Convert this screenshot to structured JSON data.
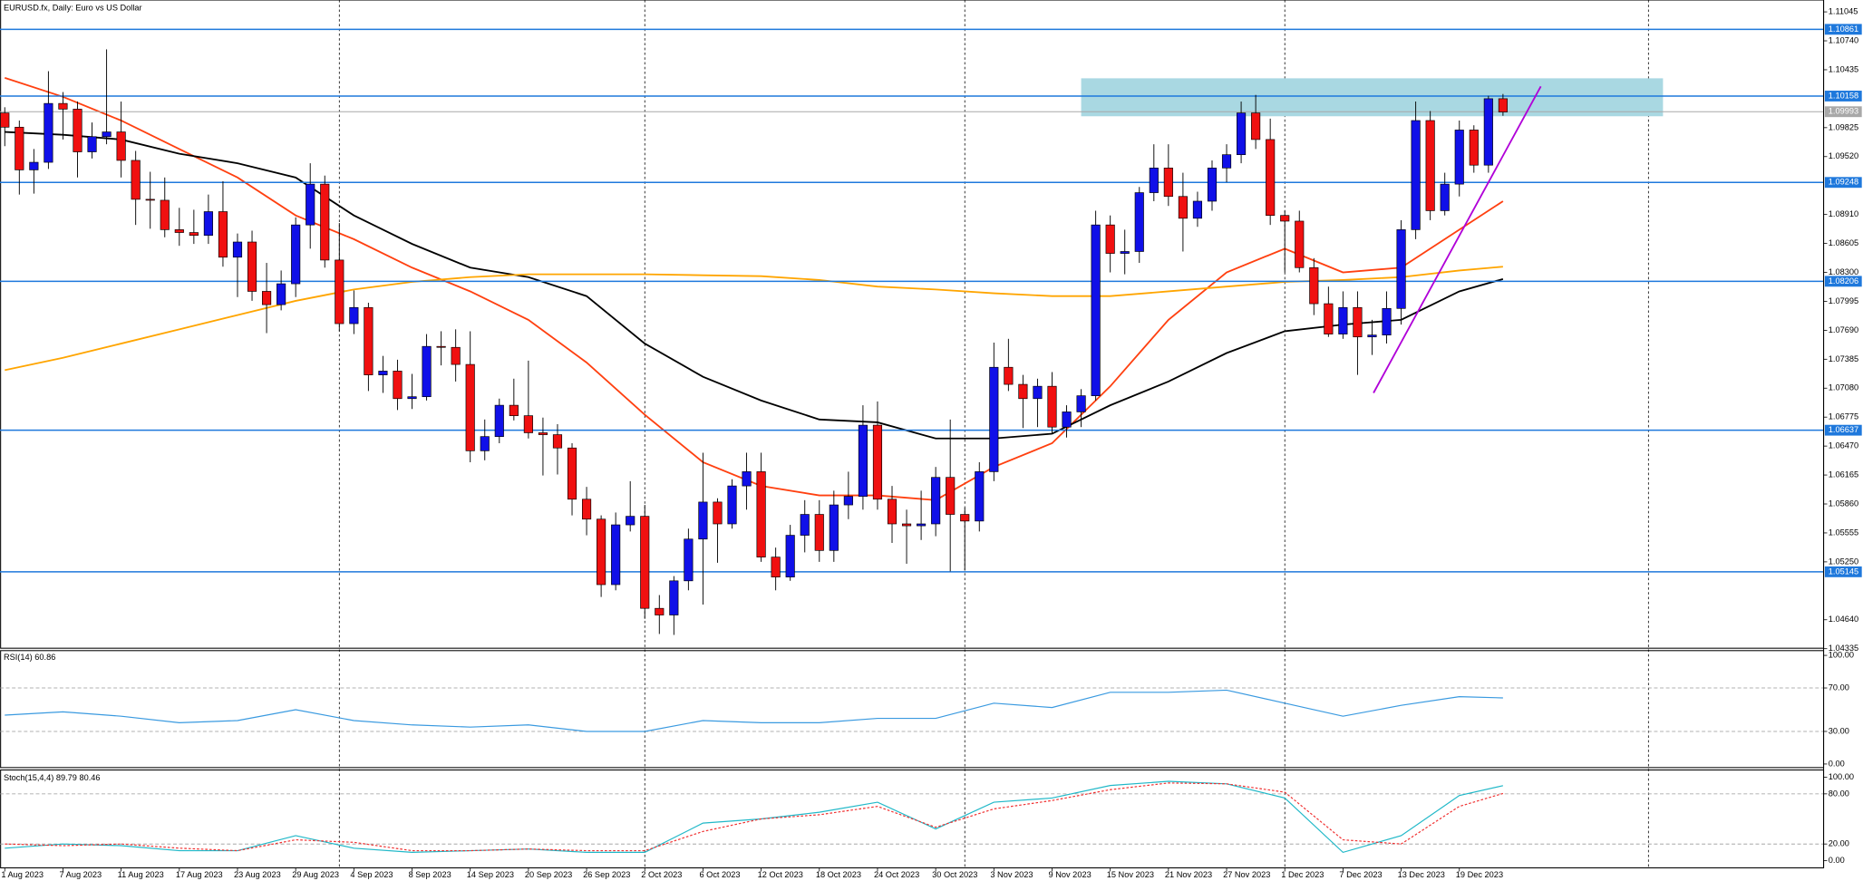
{
  "chart_data": [
    {
      "type": "candlestick",
      "title": "EURUSD.fx, Daily: Euro vs US Dollar",
      "categories": [
        "1 Aug 2023",
        null,
        null,
        null,
        "7 Aug 2023",
        null,
        null,
        null,
        "11 Aug 2023",
        null,
        null,
        null,
        "17 Aug 2023",
        null,
        null,
        null,
        "23 Aug 2023",
        null,
        null,
        null,
        "29 Aug 2023",
        null,
        null,
        null,
        "4 Sep 2023",
        null,
        null,
        null,
        "8 Sep 2023",
        null,
        null,
        null,
        "14 Sep 2023",
        null,
        null,
        null,
        "20 Sep 2023",
        null,
        null,
        null,
        "26 Sep 2023",
        null,
        null,
        null,
        "2 Oct 2023",
        null,
        null,
        null,
        "6 Oct 2023",
        null,
        null,
        null,
        "12 Oct 2023",
        null,
        null,
        null,
        "18 Oct 2023",
        null,
        null,
        null,
        "24 Oct 2023",
        null,
        null,
        null,
        "30 Oct 2023",
        null,
        null,
        null,
        "3 Nov 2023",
        null,
        null,
        null,
        "9 Nov 2023",
        null,
        null,
        null,
        "15 Nov 2023",
        null,
        null,
        null,
        "21 Nov 2023",
        null,
        null,
        null,
        "27 Nov 2023",
        null,
        null,
        null,
        "1 Dec 2023",
        null,
        null,
        null,
        "7 Dec 2023",
        null,
        null,
        null,
        "13 Dec 2023",
        null,
        null,
        null,
        "19 Dec 2023",
        null,
        null,
        null
      ],
      "open": [
        1.0998,
        1.0983,
        1.0938,
        1.0946,
        1.1008,
        1.1002,
        1.0957,
        1.0973,
        1.0978,
        1.0948,
        1.0907,
        1.0906,
        1.0875,
        1.0872,
        1.0869,
        1.0894,
        1.0846,
        1.0862,
        1.081,
        1.0796,
        1.0818,
        1.088,
        1.0923,
        1.0843,
        1.0776,
        1.0793,
        1.0722,
        1.0726,
        1.0697,
        1.0699,
        1.0752,
        1.0751,
        1.0733,
        1.0642,
        1.0657,
        1.069,
        1.0679,
        1.0661,
        1.0659,
        1.0645,
        1.0591,
        1.057,
        1.0501,
        1.0564,
        1.0573,
        1.0476,
        1.0469,
        1.0505,
        1.0549,
        1.0588,
        1.0565,
        1.0605,
        1.062,
        1.053,
        1.0509,
        1.0553,
        1.0575,
        1.0537,
        1.0585,
        1.0594,
        1.0669,
        1.0591,
        1.0565,
        1.0563,
        1.0565,
        1.0614,
        1.0575,
        1.0568,
        1.062,
        1.073,
        1.0712,
        1.0697,
        1.071,
        1.0667,
        1.0683,
        1.07,
        1.088,
        1.085,
        1.0852,
        1.0914,
        1.094,
        1.091,
        1.0887,
        1.0905,
        1.094,
        1.0954,
        1.0998,
        1.097,
        1.089,
        1.0884,
        1.0835,
        1.0797,
        1.0765,
        1.0793,
        1.0762,
        1.0764,
        1.0792,
        1.0875,
        1.099,
        1.0895,
        1.0923,
        1.098,
        1.0943,
        1.1013
      ],
      "high": [
        1.1004,
        1.099,
        1.096,
        1.1042,
        1.102,
        1.101,
        1.0988,
        1.1065,
        1.101,
        1.0958,
        1.0936,
        1.093,
        1.0898,
        1.0896,
        1.0912,
        1.0926,
        1.0871,
        1.0874,
        1.084,
        1.0832,
        1.0888,
        1.0945,
        1.0932,
        1.0882,
        1.0811,
        1.0798,
        1.0742,
        1.0738,
        1.0723,
        1.0765,
        1.0768,
        1.077,
        1.0768,
        1.0675,
        1.0697,
        1.0718,
        1.0737,
        1.0677,
        1.067,
        1.065,
        1.0604,
        1.0574,
        1.0577,
        1.061,
        1.0585,
        1.049,
        1.051,
        1.056,
        1.064,
        1.0592,
        1.0612,
        1.064,
        1.064,
        1.054,
        1.0564,
        1.059,
        1.059,
        1.06,
        1.062,
        1.069,
        1.0694,
        1.0605,
        1.058,
        1.06,
        1.0625,
        1.0675,
        1.0582,
        1.063,
        1.0756,
        1.076,
        1.0722,
        1.0718,
        1.0725,
        1.069,
        1.0707,
        1.0895,
        1.089,
        1.0875,
        1.092,
        1.0965,
        1.0965,
        1.0935,
        1.0915,
        1.0948,
        1.0965,
        1.101,
        1.1017,
        1.0992,
        1.0895,
        1.0895,
        1.0845,
        1.0815,
        1.081,
        1.081,
        1.078,
        1.081,
        1.0885,
        1.101,
        1.1,
        1.0935,
        1.099,
        1.0985,
        1.1016,
        1.1018
      ],
      "low": [
        1.0963,
        1.0912,
        1.0913,
        1.0939,
        1.097,
        1.093,
        1.095,
        1.0965,
        1.093,
        1.088,
        1.0876,
        1.0867,
        1.0858,
        1.086,
        1.086,
        1.0836,
        1.0804,
        1.08,
        1.0766,
        1.079,
        1.0804,
        1.0855,
        1.0835,
        1.0768,
        1.0765,
        1.0705,
        1.0703,
        1.0685,
        1.0686,
        1.0695,
        1.0732,
        1.0715,
        1.063,
        1.0632,
        1.065,
        1.0674,
        1.0655,
        1.0616,
        1.0617,
        1.0574,
        1.0553,
        1.0488,
        1.0495,
        1.0557,
        1.0465,
        1.0449,
        1.0448,
        1.0495,
        1.048,
        1.0524,
        1.056,
        1.058,
        1.0525,
        1.0495,
        1.0505,
        1.0535,
        1.0525,
        1.0525,
        1.057,
        1.058,
        1.058,
        1.0545,
        1.0523,
        1.0548,
        1.0552,
        1.0515,
        1.0516,
        1.0557,
        1.061,
        1.0705,
        1.0666,
        1.0667,
        1.066,
        1.0656,
        1.0667,
        1.0695,
        1.083,
        1.0828,
        1.084,
        1.0905,
        1.09,
        1.0852,
        1.0878,
        1.0895,
        1.0925,
        1.0945,
        1.096,
        1.088,
        1.083,
        1.083,
        1.0785,
        1.0762,
        1.076,
        1.0722,
        1.0743,
        1.0755,
        1.0775,
        1.0865,
        1.0885,
        1.089,
        1.091,
        1.0935,
        1.0935,
        1.0995
      ],
      "close": [
        1.0983,
        1.0938,
        1.0946,
        1.1008,
        1.1002,
        1.0957,
        1.0973,
        1.0978,
        1.0948,
        1.0907,
        1.0906,
        1.0875,
        1.0872,
        1.0869,
        1.0894,
        1.0846,
        1.0862,
        1.081,
        1.0796,
        1.0818,
        1.088,
        1.0923,
        1.0843,
        1.0776,
        1.0793,
        1.0722,
        1.0726,
        1.0697,
        1.0699,
        1.0752,
        1.0751,
        1.0733,
        1.0642,
        1.0657,
        1.069,
        1.0679,
        1.0661,
        1.0659,
        1.0645,
        1.0591,
        1.057,
        1.0501,
        1.0564,
        1.0573,
        1.0476,
        1.0469,
        1.0505,
        1.0549,
        1.0588,
        1.0565,
        1.0605,
        1.062,
        1.053,
        1.0509,
        1.0553,
        1.0575,
        1.0537,
        1.0585,
        1.0594,
        1.0669,
        1.0591,
        1.0565,
        1.0563,
        1.0565,
        1.0614,
        1.0575,
        1.0568,
        1.062,
        1.073,
        1.0712,
        1.0697,
        1.071,
        1.0667,
        1.0683,
        1.07,
        1.088,
        1.085,
        1.0852,
        1.0914,
        1.094,
        1.091,
        1.0887,
        1.0905,
        1.094,
        1.0954,
        1.0998,
        1.097,
        1.089,
        1.0884,
        1.0835,
        1.0797,
        1.0765,
        1.0793,
        1.0762,
        1.0764,
        1.0792,
        1.0875,
        1.099,
        1.0895,
        1.0923,
        1.098,
        1.0943,
        1.1013,
        1.0999
      ],
      "up_color": "#1010e8",
      "down_color": "#f01010",
      "overlays": [
        {
          "color": "#ff4010",
          "x": [
            0,
            4,
            8,
            12,
            16,
            20,
            24,
            28,
            32,
            36,
            40,
            44,
            48,
            52,
            56,
            60,
            64,
            68,
            72,
            76,
            80,
            84,
            88,
            92,
            96,
            100,
            103
          ],
          "values": [
            1.1035,
            1.1015,
            1.099,
            1.096,
            1.093,
            1.089,
            1.0865,
            1.0835,
            1.081,
            1.078,
            1.0735,
            1.068,
            1.063,
            1.0605,
            1.0595,
            1.0595,
            1.059,
            1.0625,
            1.065,
            1.071,
            1.078,
            1.083,
            1.0855,
            1.083,
            1.0835,
            1.0875,
            1.0905
          ]
        },
        {
          "color": "#000000",
          "x": [
            0,
            4,
            8,
            12,
            16,
            20,
            24,
            28,
            32,
            36,
            40,
            44,
            48,
            52,
            56,
            60,
            64,
            68,
            72,
            76,
            80,
            84,
            88,
            92,
            96,
            100,
            103
          ],
          "values": [
            1.0978,
            1.0975,
            1.097,
            1.0955,
            1.0945,
            1.093,
            1.089,
            1.086,
            1.0835,
            1.0825,
            1.0805,
            1.0755,
            1.072,
            1.0695,
            1.0675,
            1.0672,
            1.0655,
            1.0655,
            1.066,
            1.069,
            1.0715,
            1.0745,
            1.0768,
            1.0775,
            1.078,
            1.081,
            1.0823
          ]
        },
        {
          "color": "#ffa500",
          "x": [
            0,
            4,
            8,
            12,
            16,
            20,
            24,
            28,
            32,
            36,
            40,
            44,
            48,
            52,
            56,
            60,
            64,
            68,
            72,
            76,
            80,
            84,
            88,
            92,
            96,
            100,
            103
          ],
          "values": [
            1.0727,
            1.074,
            1.0755,
            1.077,
            1.0785,
            1.08,
            1.0812,
            1.082,
            1.0825,
            1.0828,
            1.0828,
            1.0828,
            1.0827,
            1.0826,
            1.0822,
            1.0815,
            1.0812,
            1.0808,
            1.0805,
            1.0805,
            1.081,
            1.0815,
            1.082,
            1.0822,
            1.0825,
            1.0832,
            1.0836
          ]
        }
      ],
      "levels": [
        1.10861,
        1.10158,
        1.09248,
        1.08206,
        1.06637,
        1.05145
      ],
      "level_color": "#1e78dc",
      "bid": 1.09993,
      "bid_color": "#a8a8a8",
      "zone": [
        1.09945,
        1.10345
      ],
      "zone_color": "#a9d8e2",
      "trendline": [
        1.0703,
        1.1026
      ],
      "trendline_color": "#b000d8",
      "ylim": [
        1.0434,
        1.1117
      ],
      "yticks": [
        1.11045,
        {
          "value": 1.1074,
          "label": "1.10740"
        },
        1.10435,
        1.09825,
        {
          "value": 1.0952,
          "label": "1.09520"
        },
        {
          "value": 1.0891,
          "label": "1.08910"
        },
        1.08605,
        {
          "value": 1.083,
          "label": "1.08300"
        },
        1.07995,
        {
          "value": 1.0769,
          "label": "1.07690"
        },
        1.07385,
        {
          "value": 1.0708,
          "label": "1.07080"
        },
        1.06775,
        {
          "value": 1.0647,
          "label": "1.06470"
        },
        1.06165,
        {
          "value": 1.0586,
          "label": "1.05860"
        },
        1.05555,
        {
          "value": 1.0525,
          "label": "1.05250"
        },
        {
          "value": 1.0464,
          "label": "1.04640"
        },
        1.04335
      ]
    },
    {
      "type": "line",
      "title": "RSI(14) 60.86",
      "ylim": [
        0,
        100
      ],
      "yticks": [
        {
          "value": 100,
          "label": "100.00"
        },
        {
          "value": 70,
          "label": "70.00"
        },
        {
          "value": 30,
          "label": "30.00"
        },
        {
          "value": 0,
          "label": "0.00"
        }
      ],
      "series": [
        {
          "color": "#3a9ae0",
          "x": [
            0,
            4,
            8,
            12,
            16,
            20,
            24,
            28,
            32,
            36,
            40,
            44,
            48,
            52,
            56,
            60,
            64,
            68,
            72,
            76,
            80,
            84,
            88,
            92,
            96,
            100,
            103
          ],
          "values": [
            45,
            48,
            44,
            38,
            40,
            50,
            40,
            36,
            34,
            36,
            30,
            30,
            40,
            38,
            38,
            42,
            42,
            56,
            52,
            66,
            66,
            68,
            56,
            44,
            54,
            62,
            60.86
          ]
        }
      ]
    },
    {
      "type": "line",
      "title": "Stoch(15,4,4) 89.79 80.46",
      "ylim": [
        0,
        100
      ],
      "yticks": [
        {
          "value": 100,
          "label": "100.00"
        },
        {
          "value": 80,
          "label": "80.00"
        },
        {
          "value": 20,
          "label": "20.00"
        },
        {
          "value": 0,
          "label": "0.00"
        }
      ],
      "series": [
        {
          "color": "#20b8c8",
          "x": [
            0,
            4,
            8,
            12,
            16,
            20,
            24,
            28,
            32,
            36,
            40,
            44,
            48,
            52,
            56,
            60,
            64,
            68,
            72,
            76,
            80,
            84,
            88,
            92,
            96,
            100,
            103
          ],
          "values": [
            15,
            20,
            18,
            12,
            12,
            30,
            15,
            10,
            12,
            14,
            10,
            10,
            45,
            50,
            58,
            70,
            38,
            70,
            75,
            90,
            95,
            92,
            75,
            10,
            30,
            78,
            89.79
          ]
        },
        {
          "color": "#f03030",
          "dashed": true,
          "x": [
            0,
            4,
            8,
            12,
            16,
            20,
            24,
            28,
            32,
            36,
            40,
            44,
            48,
            52,
            56,
            60,
            64,
            68,
            72,
            76,
            80,
            84,
            88,
            92,
            96,
            100,
            103
          ],
          "values": [
            20,
            18,
            20,
            15,
            12,
            25,
            22,
            12,
            12,
            14,
            12,
            12,
            35,
            50,
            55,
            65,
            40,
            62,
            72,
            85,
            93,
            92,
            82,
            25,
            20,
            65,
            80.46
          ]
        }
      ]
    }
  ]
}
